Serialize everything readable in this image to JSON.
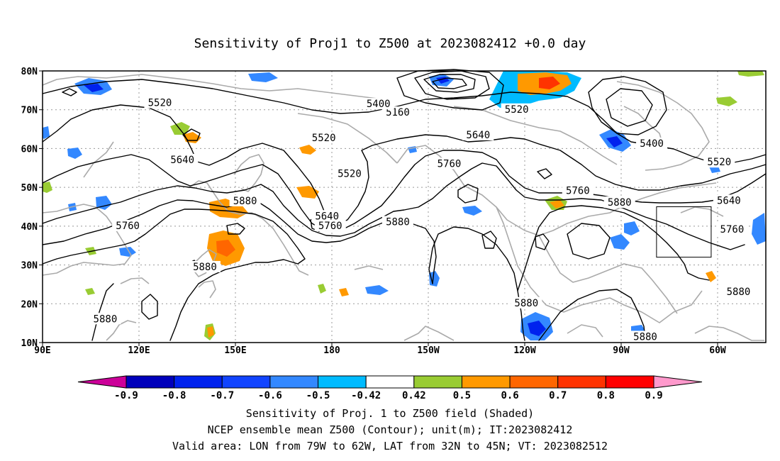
{
  "title": "Sensitivity of Proj1 to Z500 at 2023082412 +0.0 day",
  "captions": [
    "Sensitivity of Proj. 1 to Z500 field (Shaded)",
    "NCEP ensemble mean Z500 (Contour); unit(m); IT:2023082412",
    "Valid area: LON from 79W to 62W, LAT from 32N to 45N; VT: 2023082512"
  ],
  "map": {
    "lon_range": [
      90,
      315
    ],
    "lat_range": [
      10,
      80
    ],
    "lat_ticks": [
      {
        "lat": 80,
        "label": "80N"
      },
      {
        "lat": 70,
        "label": "70N"
      },
      {
        "lat": 60,
        "label": "60N"
      },
      {
        "lat": 50,
        "label": "50N"
      },
      {
        "lat": 40,
        "label": "40N"
      },
      {
        "lat": 30,
        "label": "30N"
      },
      {
        "lat": 20,
        "label": "20N"
      },
      {
        "lat": 10,
        "label": "10N"
      }
    ],
    "lon_ticks": [
      {
        "lon": 90,
        "label": "90E"
      },
      {
        "lon": 120,
        "label": "120E"
      },
      {
        "lon": 150,
        "label": "150E"
      },
      {
        "lon": 180,
        "label": "180"
      },
      {
        "lon": 210,
        "label": "150W"
      },
      {
        "lon": 240,
        "label": "120W"
      },
      {
        "lon": 270,
        "label": "90W"
      },
      {
        "lon": 300,
        "label": "60W"
      }
    ],
    "valid_box": {
      "lon_min": 281,
      "lon_max": 298,
      "lat_min": 32,
      "lat_max": 45
    },
    "contour_labels": [
      {
        "text": "5520",
        "lon": 126.5,
        "lat": 71.5
      },
      {
        "text": "5520",
        "lon": 177.5,
        "lat": 62.5
      },
      {
        "text": "5160",
        "lon": 200.5,
        "lat": 69.0
      },
      {
        "text": "5400",
        "lon": 194.5,
        "lat": 71.2
      },
      {
        "text": "5520",
        "lon": 237.5,
        "lat": 69.8
      },
      {
        "text": "5640",
        "lon": 225.5,
        "lat": 63.2
      },
      {
        "text": "5760",
        "lon": 216.5,
        "lat": 55.8
      },
      {
        "text": "5400",
        "lon": 279.5,
        "lat": 61.0
      },
      {
        "text": "5520",
        "lon": 300.5,
        "lat": 56.2
      },
      {
        "text": "5640",
        "lon": 133.5,
        "lat": 56.8
      },
      {
        "text": "5520",
        "lon": 185.5,
        "lat": 53.2
      },
      {
        "text": "5760",
        "lon": 256.5,
        "lat": 48.8
      },
      {
        "text": "5880",
        "lon": 269.5,
        "lat": 45.8
      },
      {
        "text": "5640",
        "lon": 303.5,
        "lat": 46.3
      },
      {
        "text": "5880",
        "lon": 153.0,
        "lat": 46.2
      },
      {
        "text": "5640",
        "lon": 178.5,
        "lat": 42.3
      },
      {
        "text": "5760",
        "lon": 179.5,
        "lat": 39.8
      },
      {
        "text": "5880",
        "lon": 200.5,
        "lat": 40.8
      },
      {
        "text": "5760",
        "lon": 304.5,
        "lat": 38.9
      },
      {
        "text": "5760",
        "lon": 116.5,
        "lat": 39.8
      },
      {
        "text": "5880",
        "lon": 140.5,
        "lat": 29.2
      },
      {
        "text": "5880",
        "lon": 306.5,
        "lat": 22.8
      },
      {
        "text": "5880",
        "lon": 240.5,
        "lat": 19.9
      },
      {
        "text": "5880",
        "lon": 109.5,
        "lat": 15.8
      },
      {
        "text": "5880",
        "lon": 277.5,
        "lat": 11.2
      }
    ]
  },
  "colorbar": {
    "colors": [
      "#cc0099",
      "#0000bb",
      "#0022ee",
      "#1144ff",
      "#3388ff",
      "#00bbff",
      "#ffffff",
      "#99cc33",
      "#ff9900",
      "#ff6600",
      "#ff3300",
      "#ff0000",
      "#ff99cc"
    ],
    "labels": [
      "-0.9",
      "-0.8",
      "-0.7",
      "-0.6",
      "-0.5",
      "-0.42",
      "0.42",
      "0.5",
      "0.6",
      "0.7",
      "0.8",
      "0.9"
    ]
  }
}
